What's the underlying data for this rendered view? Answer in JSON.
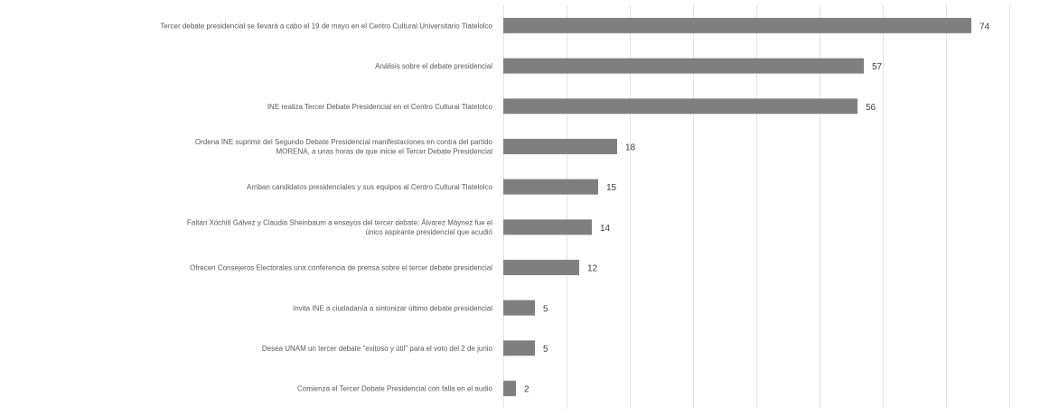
{
  "chart_data": {
    "type": "bar",
    "orientation": "horizontal",
    "categories": [
      "Tercer debate presidencial se llevará a cabo el 19 de mayo en el Centro Cultural Universitario Tlatelolco",
      "Análisis sobre el debate presidencial",
      "INE realiza Tercer Debate Presidencial en el Centro Cultural Tlatelolco",
      "Ordena INE suprimir del Segundo Debate Presidencial manifestaciones en contra del partido MORENA, a unas horas de que inicie el Tercer Debate Presidencial",
      "Arriban candidatos presidenciales y sus equipos al Centro Cultural Tlatelolco",
      "Faltan Xóchitl Gálvez y Claudia Sheinbaum a ensayos del tercer debate; Álvarez Máynez fue el único aspirante presidencial que acudió",
      "Ofrecen Consejeros Electorales una conferencia de prensa sobre el tercer debate presidencial",
      "Invita INE a ciudadanía a sintonizar último debate presidencial",
      "Desea UNAM un tercer debate \"exitoso y útil\" para el voto del 2 de junio",
      "Comienza el Tercer Debate Presidencial con falla en el audio"
    ],
    "values": [
      74,
      57,
      56,
      18,
      15,
      14,
      12,
      5,
      5,
      2
    ],
    "xlim": [
      0,
      80
    ],
    "grid": true,
    "legend": "none",
    "bar_color": "#7f7f7f",
    "grid_color": "#e3e3e3"
  }
}
